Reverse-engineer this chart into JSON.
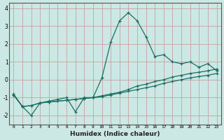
{
  "xlabel": "Humidex (Indice chaleur)",
  "bg_color": "#cce8e4",
  "grid_color": "#c8a0a0",
  "line_color": "#1a6e62",
  "spine_color": "#555555",
  "xlim": [
    -0.5,
    23.5
  ],
  "ylim": [
    -2.5,
    4.3
  ],
  "xticks": [
    0,
    1,
    2,
    3,
    4,
    5,
    6,
    7,
    8,
    9,
    10,
    11,
    12,
    13,
    14,
    15,
    16,
    17,
    18,
    19,
    20,
    21,
    22,
    23
  ],
  "yticks": [
    -2,
    -1,
    0,
    1,
    2,
    3,
    4
  ],
  "line1_x": [
    0,
    1,
    2,
    3,
    4,
    5,
    6,
    7,
    8,
    9,
    10,
    11,
    12,
    13,
    14,
    15,
    16,
    17,
    18,
    19,
    20,
    21,
    22,
    23
  ],
  "line1_y": [
    -0.8,
    -1.5,
    -2.0,
    -1.3,
    -1.2,
    -1.1,
    -1.0,
    -1.8,
    -1.0,
    -1.0,
    0.1,
    2.1,
    3.3,
    3.75,
    3.3,
    2.4,
    1.3,
    1.4,
    1.0,
    0.9,
    1.0,
    0.7,
    0.9,
    0.5
  ],
  "line2_x": [
    0,
    1,
    2,
    3,
    4,
    5,
    6,
    7,
    8,
    9,
    10,
    11,
    12,
    13,
    14,
    15,
    16,
    17,
    18,
    19,
    20,
    21,
    22,
    23
  ],
  "line2_y": [
    -0.85,
    -1.5,
    -1.45,
    -1.3,
    -1.25,
    -1.2,
    -1.15,
    -1.1,
    -1.05,
    -1.0,
    -0.95,
    -0.85,
    -0.75,
    -0.65,
    -0.55,
    -0.45,
    -0.35,
    -0.2,
    -0.1,
    0.0,
    0.1,
    0.18,
    0.25,
    0.35
  ],
  "line3_x": [
    0,
    1,
    2,
    3,
    4,
    5,
    6,
    7,
    8,
    9,
    10,
    11,
    12,
    13,
    14,
    15,
    16,
    17,
    18,
    19,
    20,
    21,
    22,
    23
  ],
  "line3_y": [
    -0.85,
    -1.5,
    -1.45,
    -1.3,
    -1.25,
    -1.2,
    -1.15,
    -1.1,
    -1.05,
    -1.0,
    -0.9,
    -0.8,
    -0.7,
    -0.55,
    -0.35,
    -0.25,
    -0.1,
    0.0,
    0.15,
    0.25,
    0.35,
    0.42,
    0.5,
    0.6
  ]
}
